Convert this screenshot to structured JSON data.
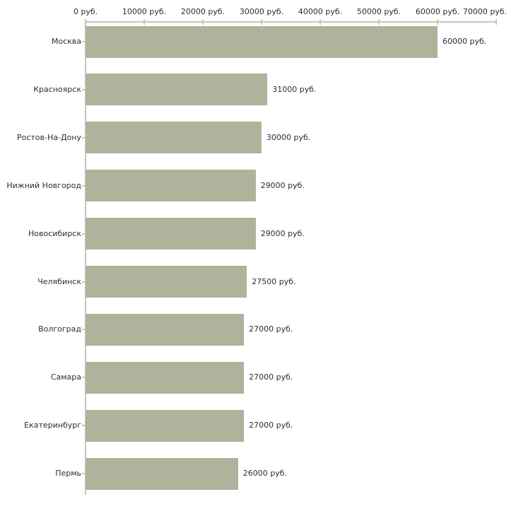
{
  "chart_data": {
    "type": "bar",
    "orientation": "horizontal",
    "title": "",
    "xlabel": "",
    "ylabel": "",
    "unit": "руб.",
    "categories": [
      "Москва",
      "Красноярск",
      "Ростов-На-Дону",
      "Нижний Новгород",
      "Новосибирск",
      "Челябинск",
      "Волгоград",
      "Самара",
      "Екатеринбург",
      "Пермь"
    ],
    "values": [
      60000,
      31000,
      30000,
      29000,
      29000,
      27500,
      27000,
      27000,
      27000,
      26000
    ],
    "value_labels": [
      "60000 руб.",
      "31000 руб.",
      "30000 руб.",
      "29000 руб.",
      "29000 руб.",
      "27500 руб.",
      "27000 руб.",
      "27000 руб.",
      "27000 руб.",
      "26000 руб."
    ],
    "x_axis": {
      "position": "top",
      "min": 0,
      "max": 70000,
      "ticks": [
        0,
        10000,
        20000,
        30000,
        40000,
        50000,
        60000,
        70000
      ],
      "tick_labels": [
        "0 руб.",
        "10000 руб.",
        "20000 руб.",
        "30000 руб.",
        "40000 руб.",
        "50000 руб.",
        "60000 руб.",
        "70000 руб."
      ]
    },
    "grid": false,
    "legend": false,
    "colors": {
      "bar": "#aeb49b",
      "axis_line": "#c4c4c4",
      "tick_mark": "#c8c8a6",
      "text": "#2e2e2e",
      "background": "#ffffff"
    }
  }
}
